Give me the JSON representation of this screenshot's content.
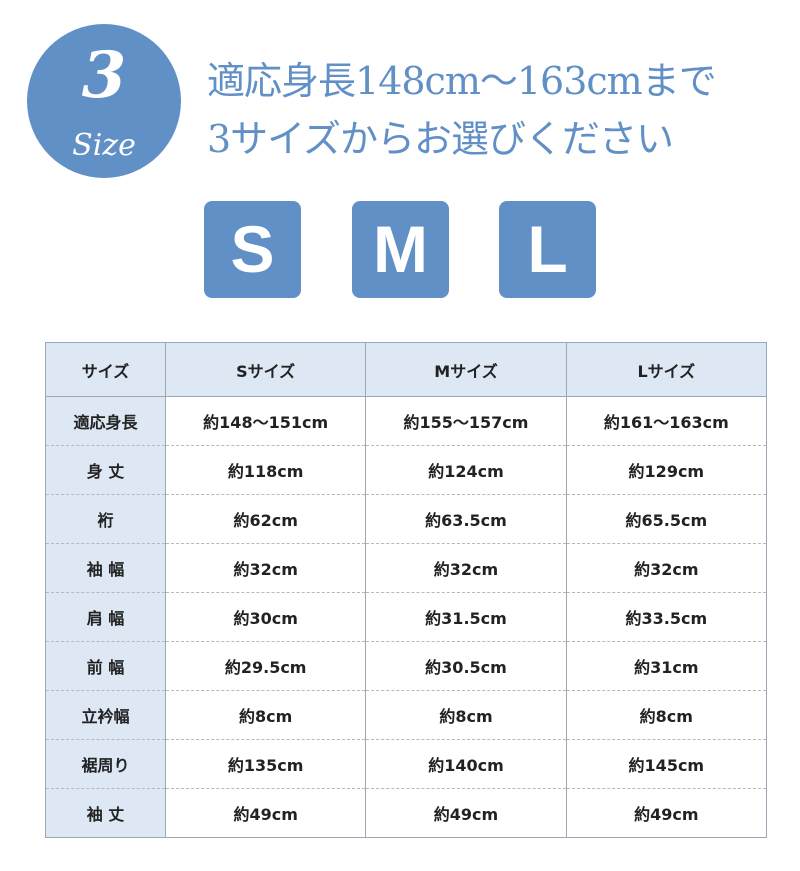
{
  "badge": {
    "number": "3",
    "label": "Size"
  },
  "headline": {
    "line1": "適応身長148cm〜163cmまで",
    "line2": "3サイズからお選びください"
  },
  "sizes": [
    "S",
    "M",
    "L"
  ],
  "colors": {
    "accent": "#6190c6",
    "header_bg": "#dde8f4"
  },
  "table": {
    "headers": [
      "サイズ",
      "Sサイズ",
      "Mサイズ",
      "Lサイズ"
    ],
    "rows": [
      [
        "適応身長",
        "約148〜151cm",
        "約155〜157cm",
        "約161〜163cm"
      ],
      [
        "身 丈",
        "約118cm",
        "約124cm",
        "約129cm"
      ],
      [
        "裄",
        "約62cm",
        "約63.5cm",
        "約65.5cm"
      ],
      [
        "袖 幅",
        "約32cm",
        "約32cm",
        "約32cm"
      ],
      [
        "肩 幅",
        "約30cm",
        "約31.5cm",
        "約33.5cm"
      ],
      [
        "前 幅",
        "約29.5cm",
        "約30.5cm",
        "約31cm"
      ],
      [
        "立衿幅",
        "約8cm",
        "約8cm",
        "約8cm"
      ],
      [
        "裾周り",
        "約135cm",
        "約140cm",
        "約145cm"
      ],
      [
        "袖 丈",
        "約49cm",
        "約49cm",
        "約49cm"
      ]
    ]
  }
}
